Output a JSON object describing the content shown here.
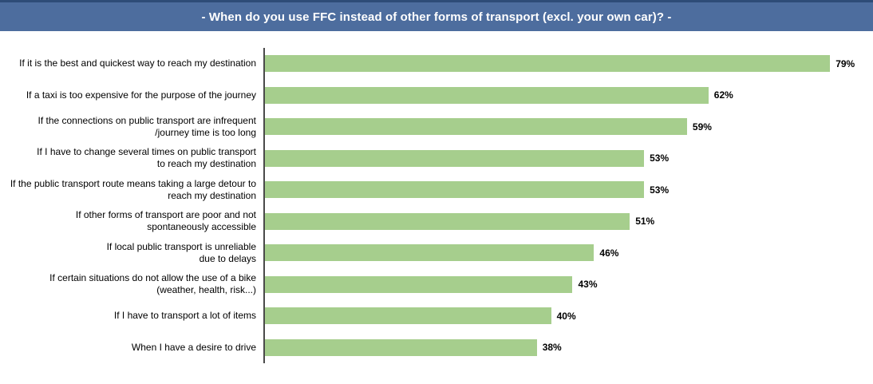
{
  "banner": {
    "title": "- When do you use FFC instead of other forms of transport (excl. your own car)? -"
  },
  "chart_data": {
    "type": "bar",
    "orientation": "horizontal",
    "title": "- When do you use FFC instead of other forms of transport (excl. your own car)? -",
    "categories": [
      "If it is the best and quickest way to reach my destination",
      "If a taxi is too expensive for the purpose of the journey",
      "If the connections on public transport are infrequent\n/journey time is too long",
      "If I have to change several times on public transport\nto reach my destination",
      "If the public transport route means taking a large detour to\nreach my destination",
      "If other forms of transport are poor and not\nspontaneously accessible",
      "If local public transport is unreliable\ndue to delays",
      "If certain situations do not allow the use of a bike\n(weather, health, risk...)",
      "If I have to transport a lot of items",
      "When I have a desire to drive"
    ],
    "values": [
      79,
      62,
      59,
      53,
      53,
      51,
      46,
      43,
      40,
      38
    ],
    "value_suffix": "%",
    "xlabel": "",
    "ylabel": "",
    "xlim": [
      0,
      85
    ],
    "grid": false,
    "legend": false,
    "data_labels": true,
    "bar_color": "#a6ce8d",
    "banner_color": "#4d6d9e",
    "axis_line_color": "#4a4a4a"
  }
}
